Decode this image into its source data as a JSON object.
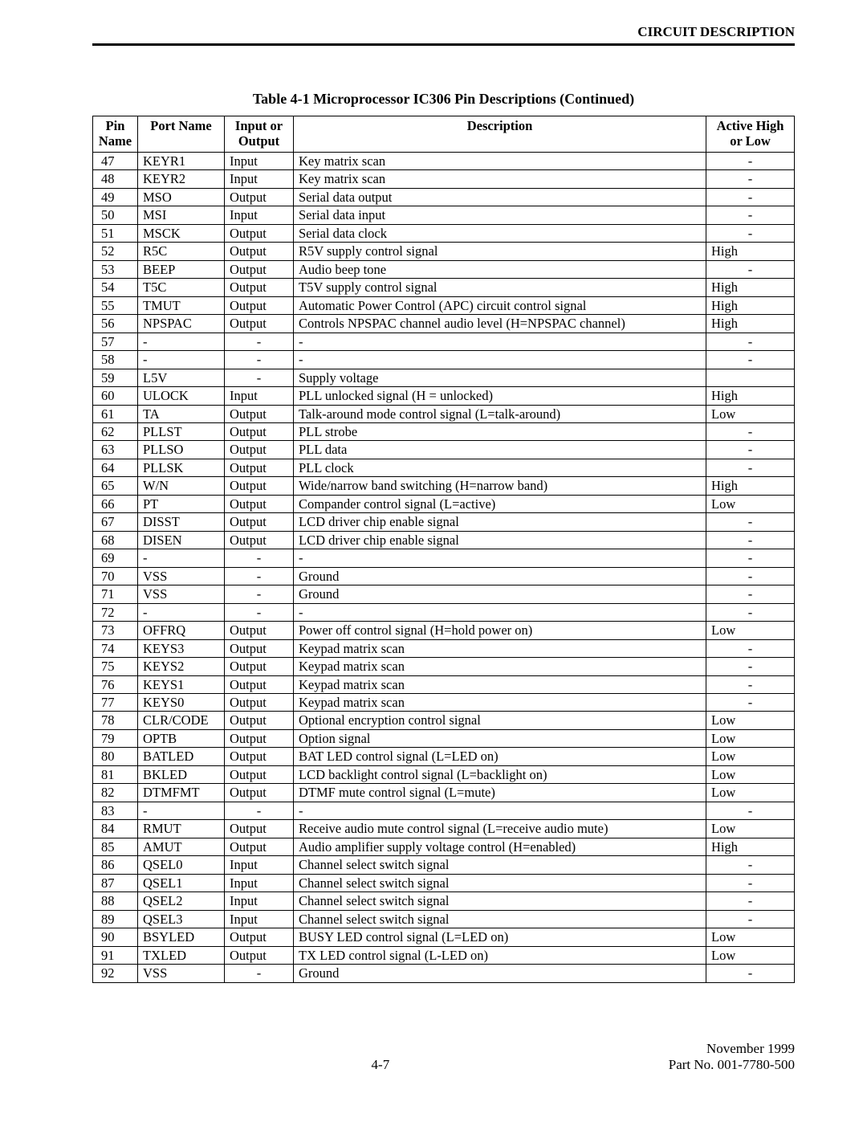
{
  "header": {
    "section_title": "CIRCUIT DESCRIPTION"
  },
  "table": {
    "caption": "Table 4-1   Microprocessor IC306 Pin Descriptions (Continued)",
    "columns": {
      "pin": "Pin Name",
      "port": "Port Name",
      "io": "Input or Output",
      "desc": "Description",
      "active": "Active High or Low"
    },
    "rows": [
      {
        "pin": "47",
        "port": "KEYR1",
        "io": "Input",
        "desc": "Key matrix scan",
        "active": "-"
      },
      {
        "pin": "48",
        "port": "KEYR2",
        "io": "Input",
        "desc": "Key matrix scan",
        "active": "-"
      },
      {
        "pin": "49",
        "port": "MSO",
        "io": "Output",
        "desc": "Serial data output",
        "active": "-"
      },
      {
        "pin": "50",
        "port": "MSI",
        "io": "Input",
        "desc": "Serial data input",
        "active": "-"
      },
      {
        "pin": "51",
        "port": "MSCK",
        "io": "Output",
        "desc": "Serial data clock",
        "active": "-"
      },
      {
        "pin": "52",
        "port": "R5C",
        "io": "Output",
        "desc": "R5V supply control signal",
        "active": "High"
      },
      {
        "pin": "53",
        "port": "BEEP",
        "io": "Output",
        "desc": "Audio beep tone",
        "active": "-"
      },
      {
        "pin": "54",
        "port": "T5C",
        "io": "Output",
        "desc": "T5V supply control signal",
        "active": "High"
      },
      {
        "pin": "55",
        "port": "TMUT",
        "io": "Output",
        "desc": "Automatic Power Control (APC) circuit control signal",
        "active": "High"
      },
      {
        "pin": "56",
        "port": "NPSPAC",
        "io": "Output",
        "desc": "Controls NPSPAC channel audio level (H=NPSPAC channel)",
        "active": "High"
      },
      {
        "pin": "57",
        "port": "-",
        "io": "-",
        "desc": "-",
        "active": "-"
      },
      {
        "pin": "58",
        "port": "-",
        "io": "-",
        "desc": "-",
        "active": "-"
      },
      {
        "pin": "59",
        "port": "L5V",
        "io": "-",
        "desc": "Supply voltage",
        "active": ""
      },
      {
        "pin": "60",
        "port": "ULOCK",
        "io": "Input",
        "desc": "PLL unlocked signal (H = unlocked)",
        "active": "High"
      },
      {
        "pin": "61",
        "port": "TA",
        "io": "Output",
        "desc": "Talk-around mode control signal (L=talk-around)",
        "active": "Low"
      },
      {
        "pin": "62",
        "port": "PLLST",
        "io": "Output",
        "desc": "PLL strobe",
        "active": "-"
      },
      {
        "pin": "63",
        "port": "PLLSO",
        "io": "Output",
        "desc": "PLL data",
        "active": "-"
      },
      {
        "pin": "64",
        "port": "PLLSK",
        "io": "Output",
        "desc": "PLL clock",
        "active": "-"
      },
      {
        "pin": "65",
        "port": "W/N",
        "io": "Output",
        "desc": "Wide/narrow band switching (H=narrow band)",
        "active": "High"
      },
      {
        "pin": "66",
        "port": "PT",
        "io": "Output",
        "desc": "Compander control signal (L=active)",
        "active": "Low"
      },
      {
        "pin": "67",
        "port": "DISST",
        "io": "Output",
        "desc": "LCD driver chip enable signal",
        "active": "-"
      },
      {
        "pin": "68",
        "port": "DISEN",
        "io": "Output",
        "desc": "LCD driver chip enable signal",
        "active": "-"
      },
      {
        "pin": "69",
        "port": "-",
        "io": "-",
        "desc": "-",
        "active": "-"
      },
      {
        "pin": "70",
        "port": "VSS",
        "io": "-",
        "desc": "Ground",
        "active": "-"
      },
      {
        "pin": "71",
        "port": "VSS",
        "io": "-",
        "desc": "Ground",
        "active": "-"
      },
      {
        "pin": "72",
        "port": "-",
        "io": "-",
        "desc": "-",
        "active": "-"
      },
      {
        "pin": "73",
        "port": "OFFRQ",
        "io": "Output",
        "desc": "Power off control signal (H=hold power on)",
        "active": "Low"
      },
      {
        "pin": "74",
        "port": "KEYS3",
        "io": "Output",
        "desc": "Keypad matrix scan",
        "active": "-"
      },
      {
        "pin": "75",
        "port": "KEYS2",
        "io": "Output",
        "desc": "Keypad matrix scan",
        "active": "-"
      },
      {
        "pin": "76",
        "port": "KEYS1",
        "io": "Output",
        "desc": "Keypad matrix scan",
        "active": "-"
      },
      {
        "pin": "77",
        "port": "KEYS0",
        "io": "Output",
        "desc": "Keypad matrix scan",
        "active": "-"
      },
      {
        "pin": "78",
        "port": "CLR/CODE",
        "io": "Output",
        "desc": "Optional encryption control signal",
        "active": "Low"
      },
      {
        "pin": "79",
        "port": "OPTB",
        "io": "Output",
        "desc": "Option signal",
        "active": "Low"
      },
      {
        "pin": "80",
        "port": "BATLED",
        "io": "Output",
        "desc": "BAT LED control signal (L=LED on)",
        "active": "Low"
      },
      {
        "pin": "81",
        "port": "BKLED",
        "io": "Output",
        "desc": "LCD backlight control signal (L=backlight on)",
        "active": "Low"
      },
      {
        "pin": "82",
        "port": "DTMFMT",
        "io": "Output",
        "desc": "DTMF mute control signal (L=mute)",
        "active": "Low"
      },
      {
        "pin": "83",
        "port": "-",
        "io": "-",
        "desc": "-",
        "active": "-"
      },
      {
        "pin": "84",
        "port": "RMUT",
        "io": "Output",
        "desc": "Receive audio mute control signal (L=receive audio mute)",
        "active": "Low"
      },
      {
        "pin": "85",
        "port": "AMUT",
        "io": "Output",
        "desc": "Audio amplifier supply voltage control (H=enabled)",
        "active": "High"
      },
      {
        "pin": "86",
        "port": "QSEL0",
        "io": "Input",
        "desc": "Channel select switch signal",
        "active": "-"
      },
      {
        "pin": "87",
        "port": "QSEL1",
        "io": "Input",
        "desc": "Channel select switch signal",
        "active": "-"
      },
      {
        "pin": "88",
        "port": "QSEL2",
        "io": "Input",
        "desc": "Channel select switch signal",
        "active": "-"
      },
      {
        "pin": "89",
        "port": "QSEL3",
        "io": "Input",
        "desc": "Channel select switch signal",
        "active": "-"
      },
      {
        "pin": "90",
        "port": "BSYLED",
        "io": "Output",
        "desc": "BUSY LED control signal (L=LED on)",
        "active": "Low"
      },
      {
        "pin": "91",
        "port": "TXLED",
        "io": "Output",
        "desc": "TX LED control signal (L-LED on)",
        "active": "Low"
      },
      {
        "pin": "92",
        "port": "VSS",
        "io": "-",
        "desc": "Ground",
        "active": "-"
      }
    ]
  },
  "footer": {
    "page_num": "4-7",
    "date": "November 1999",
    "part_no": "Part No. 001-7780-500"
  }
}
